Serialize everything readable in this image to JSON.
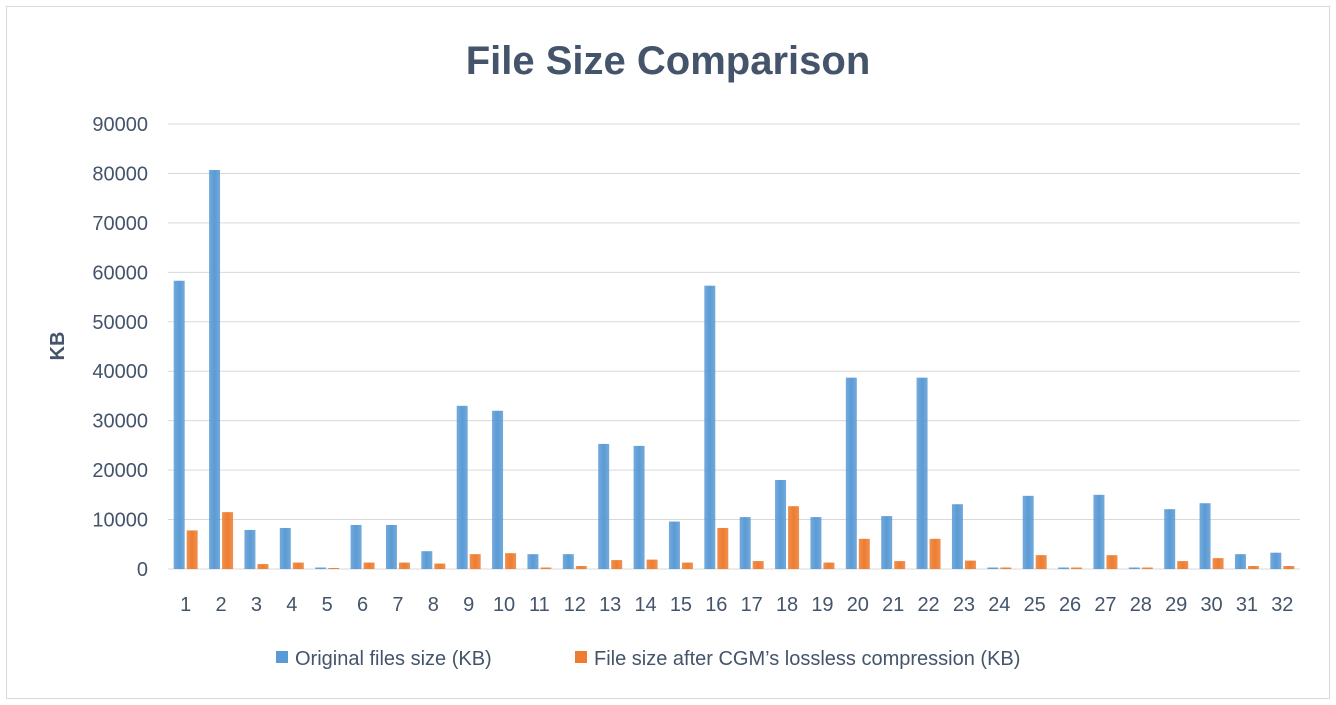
{
  "chart_data": {
    "type": "bar",
    "title": "File Size Comparison",
    "xlabel": "",
    "ylabel": "KB",
    "ylim": [
      0,
      90000
    ],
    "yticks": [
      0,
      10000,
      20000,
      30000,
      40000,
      50000,
      60000,
      70000,
      80000,
      90000
    ],
    "grid": true,
    "legend_position": "bottom",
    "categories": [
      "1",
      "2",
      "3",
      "4",
      "5",
      "6",
      "7",
      "8",
      "9",
      "10",
      "11",
      "12",
      "13",
      "14",
      "15",
      "16",
      "17",
      "18",
      "19",
      "20",
      "21",
      "22",
      "23",
      "24",
      "25",
      "26",
      "27",
      "28",
      "29",
      "30",
      "31",
      "32"
    ],
    "series": [
      {
        "name": "Original files size (KB)",
        "color": "#5b9bd5",
        "values": [
          58300,
          80700,
          7900,
          8300,
          300,
          8900,
          8900,
          3600,
          33000,
          32000,
          3000,
          3000,
          25300,
          24900,
          9600,
          57300,
          10500,
          18000,
          10500,
          38700,
          10700,
          38700,
          13100,
          300,
          14800,
          300,
          15000,
          300,
          12100,
          13300,
          3000,
          3300
        ]
      },
      {
        "name": "File size after CGM’s lossless compression (KB)",
        "color": "#ed7d31",
        "values": [
          7800,
          11500,
          1000,
          1300,
          200,
          1300,
          1300,
          1100,
          3000,
          3200,
          300,
          600,
          1800,
          1900,
          1300,
          8300,
          1600,
          12700,
          1300,
          6100,
          1600,
          6100,
          1700,
          300,
          2800,
          300,
          2800,
          300,
          1600,
          2200,
          600,
          600
        ]
      }
    ]
  }
}
